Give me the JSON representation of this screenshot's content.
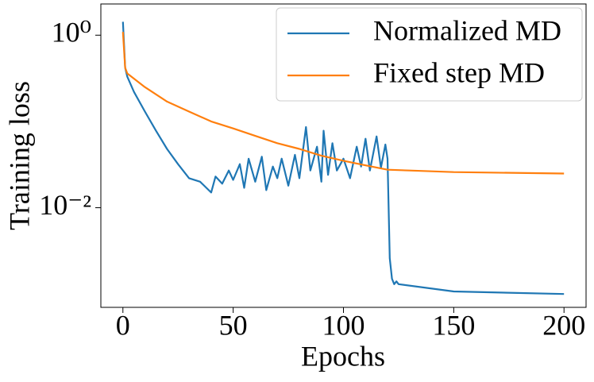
{
  "chart_data": {
    "type": "line",
    "xlabel": "Epochs",
    "ylabel": "Training loss",
    "xlim": [
      -10,
      210
    ],
    "xticks": [
      0,
      50,
      100,
      150,
      200
    ],
    "ylim": [
      0.0007,
      2.3
    ],
    "log_y": true,
    "yticks": [
      {
        "value": 1,
        "label": "10⁰"
      },
      {
        "value": 0.01,
        "label": "10⁻²"
      }
    ],
    "legend": "upper right",
    "series": [
      {
        "name": "Normalized MD",
        "color": "#1f77b4",
        "x": [
          0,
          1,
          2,
          5,
          10,
          15,
          20,
          25,
          30,
          35,
          40,
          42,
          45,
          48,
          50,
          53,
          55,
          57,
          60,
          63,
          65,
          68,
          70,
          72,
          75,
          78,
          80,
          83,
          85,
          88,
          90,
          91,
          93,
          95,
          97,
          100,
          103,
          106,
          108,
          110,
          112,
          115,
          117,
          119,
          120,
          121,
          122,
          123,
          124,
          125,
          150,
          200
        ],
        "values": [
          1.43,
          0.42,
          0.33,
          0.22,
          0.13,
          0.078,
          0.048,
          0.032,
          0.022,
          0.02,
          0.015,
          0.023,
          0.019,
          0.027,
          0.021,
          0.032,
          0.017,
          0.037,
          0.02,
          0.039,
          0.016,
          0.03,
          0.022,
          0.037,
          0.018,
          0.041,
          0.022,
          0.086,
          0.027,
          0.051,
          0.02,
          0.078,
          0.024,
          0.056,
          0.027,
          0.037,
          0.022,
          0.051,
          0.03,
          0.063,
          0.027,
          0.067,
          0.029,
          0.054,
          0.037,
          0.0026,
          0.0015,
          0.0013,
          0.0014,
          0.0013,
          0.00107,
          0.001
        ]
      },
      {
        "name": "Fixed step MD",
        "color": "#ff7f0e",
        "x": [
          0,
          1,
          2,
          10,
          20,
          30,
          40,
          50,
          60,
          70,
          80,
          90,
          100,
          110,
          120,
          130,
          150,
          200
        ],
        "values": [
          1.09,
          0.42,
          0.36,
          0.25,
          0.17,
          0.13,
          0.1,
          0.083,
          0.068,
          0.056,
          0.048,
          0.04,
          0.035,
          0.031,
          0.0276,
          0.027,
          0.0259,
          0.0249
        ]
      }
    ]
  }
}
